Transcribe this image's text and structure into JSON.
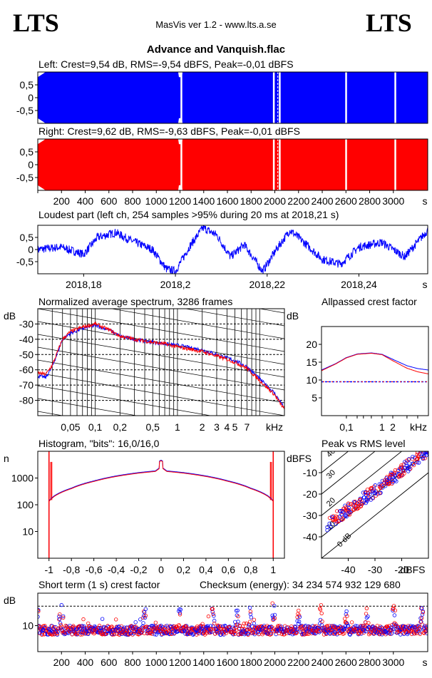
{
  "header": {
    "logo_left": "LTS",
    "logo_right": "LTS",
    "app_title": "MasVis ver 1.2 - www.lts.a.se",
    "file_title": "Advance and Vanquish.flac"
  },
  "colors": {
    "left": "#0000ff",
    "right": "#ff0000",
    "grid": "#000000"
  },
  "waveform": {
    "left_label": "Left: Crest=9,54 dB, RMS=-9,54 dBFS, Peak=-0,01 dBFS",
    "right_label": "Right: Crest=9,62 dB, RMS=-9,63 dBFS, Peak=-0,01 dBFS",
    "yticks": [
      "0,5",
      "0",
      "-0,5"
    ],
    "xticks": [
      "200",
      "400",
      "600",
      "800",
      "1000",
      "1200",
      "1400",
      "1600",
      "1800",
      "2000",
      "2200",
      "2400",
      "2600",
      "2800",
      "3000"
    ],
    "xunit": "s"
  },
  "loudest": {
    "title": "Loudest part (left  ch, 254 samples >95% during 20 ms at 2018,21 s)",
    "yticks": [
      "0,5",
      "0",
      "-0,5"
    ],
    "xticks": [
      "2018,18",
      "2018,2",
      "2018,22",
      "2018,24"
    ],
    "xunit": "s"
  },
  "spectrum": {
    "title": "Normalized average spectrum, 3286 frames",
    "ylabel": "dB",
    "yticks": [
      "-30",
      "-40",
      "-50",
      "-60",
      "-70",
      "-80"
    ],
    "xticks": [
      "0,05",
      "0,1",
      "0,2",
      "0,5",
      "1",
      "2",
      "3",
      "4",
      "5",
      "7"
    ],
    "xunit": "kHz"
  },
  "allpass": {
    "title": "Allpassed crest factor",
    "ylabel": "dB",
    "yticks": [
      "20",
      "15",
      "10",
      "5"
    ],
    "xticks": [
      "0,1",
      "1",
      "2"
    ],
    "xunit": "kHz"
  },
  "histogram": {
    "title": "Histogram, \"bits\": 16,0/16,0",
    "ylabel": "n",
    "yticks": [
      "1000",
      "100",
      "10"
    ],
    "xticks": [
      "-1",
      "-0,8",
      "-0,6",
      "-0,4",
      "-0,2",
      "0",
      "0,2",
      "0,4",
      "0,6",
      "0,8",
      "1"
    ]
  },
  "peakrms": {
    "title": "Peak vs RMS level",
    "ylabel": "dBFS",
    "yticks": [
      "-10",
      "-20",
      "-30",
      "-40"
    ],
    "xticks": [
      "-40",
      "-30",
      "-20"
    ],
    "xunit": "dBFS",
    "diag_labels": [
      "40",
      "30",
      "20",
      "10",
      "0 dB"
    ]
  },
  "shortterm": {
    "title": "Short term (1 s) crest factor",
    "checksum": "Checksum (energy):  34 234 574 932 129 680",
    "ylabel": "dB",
    "yticks": [
      "10"
    ],
    "xticks": [
      "200",
      "400",
      "600",
      "800",
      "1000",
      "1200",
      "1400",
      "1600",
      "1800",
      "2000",
      "2200",
      "2400",
      "2600",
      "2800",
      "3000"
    ],
    "xunit": "s"
  },
  "chart_data": [
    {
      "type": "area",
      "name": "waveform-left",
      "x_range": [
        0,
        3290
      ],
      "ylim": [
        -1,
        1
      ],
      "dropouts_s": [
        1210,
        1990,
        2040,
        2600,
        3015
      ]
    },
    {
      "type": "area",
      "name": "waveform-right",
      "x_range": [
        0,
        3290
      ],
      "ylim": [
        -1,
        1
      ],
      "dropouts_s": [
        1210,
        1990,
        2040,
        2600,
        3015
      ]
    },
    {
      "type": "line",
      "name": "loudest-part",
      "x_range": [
        2018.17,
        2018.255
      ],
      "ylim": [
        -1,
        1
      ],
      "points": [
        [
          2018.17,
          0.0
        ],
        [
          2018.175,
          0.1
        ],
        [
          2018.18,
          -0.2
        ],
        [
          2018.183,
          0.5
        ],
        [
          2018.187,
          0.7
        ],
        [
          2018.19,
          0.4
        ],
        [
          2018.195,
          0.0
        ],
        [
          2018.198,
          -0.8
        ],
        [
          2018.2,
          -0.9
        ],
        [
          2018.203,
          0.1
        ],
        [
          2018.206,
          0.9
        ],
        [
          2018.209,
          0.6
        ],
        [
          2018.212,
          -0.3
        ],
        [
          2018.215,
          0.2
        ],
        [
          2018.219,
          -0.9
        ],
        [
          2018.222,
          0.0
        ],
        [
          2018.225,
          0.8
        ],
        [
          2018.228,
          0.3
        ],
        [
          2018.232,
          -0.4
        ],
        [
          2018.236,
          -0.6
        ],
        [
          2018.24,
          0.1
        ],
        [
          2018.245,
          0.3
        ],
        [
          2018.25,
          -0.3
        ],
        [
          2018.255,
          0.8
        ]
      ]
    },
    {
      "type": "line",
      "name": "spectrum",
      "x_log": true,
      "x_range": [
        0.02,
        20
      ],
      "ylim": [
        -90,
        -20
      ],
      "series": [
        {
          "name": "left",
          "points": [
            [
              0.02,
              -64
            ],
            [
              0.025,
              -65
            ],
            [
              0.03,
              -58
            ],
            [
              0.04,
              -40
            ],
            [
              0.05,
              -36
            ],
            [
              0.07,
              -33
            ],
            [
              0.1,
              -31
            ],
            [
              0.15,
              -34
            ],
            [
              0.2,
              -38
            ],
            [
              0.3,
              -40
            ],
            [
              0.5,
              -42
            ],
            [
              0.7,
              -43
            ],
            [
              1,
              -44
            ],
            [
              2,
              -47
            ],
            [
              3,
              -50
            ],
            [
              5,
              -54
            ],
            [
              7,
              -58
            ],
            [
              10,
              -66
            ],
            [
              15,
              -75
            ],
            [
              20,
              -85
            ]
          ]
        },
        {
          "name": "right",
          "points": [
            [
              0.02,
              -62
            ],
            [
              0.025,
              -63
            ],
            [
              0.03,
              -57
            ],
            [
              0.04,
              -40
            ],
            [
              0.05,
              -35
            ],
            [
              0.07,
              -32
            ],
            [
              0.1,
              -30
            ],
            [
              0.15,
              -34
            ],
            [
              0.2,
              -38
            ],
            [
              0.3,
              -40
            ],
            [
              0.5,
              -42
            ],
            [
              0.7,
              -43
            ],
            [
              1,
              -45
            ],
            [
              2,
              -48
            ],
            [
              3,
              -51
            ],
            [
              5,
              -55
            ],
            [
              7,
              -59
            ],
            [
              10,
              -67
            ],
            [
              15,
              -76
            ],
            [
              20,
              -86
            ]
          ]
        }
      ]
    },
    {
      "type": "line",
      "name": "allpassed-crest",
      "x_log": true,
      "x_range": [
        0.02,
        20
      ],
      "ylim": [
        0,
        25
      ],
      "reference_db": 9.5,
      "series": [
        {
          "name": "left",
          "points": [
            [
              0.02,
              12.8
            ],
            [
              0.05,
              14.6
            ],
            [
              0.1,
              16.3
            ],
            [
              0.2,
              17.3
            ],
            [
              0.5,
              17.6
            ],
            [
              1,
              17.2
            ],
            [
              2,
              15.8
            ],
            [
              5,
              14.0
            ],
            [
              10,
              13.2
            ],
            [
              20,
              12.8
            ]
          ]
        },
        {
          "name": "right",
          "points": [
            [
              0.02,
              12.6
            ],
            [
              0.05,
              14.5
            ],
            [
              0.1,
              16.2
            ],
            [
              0.2,
              17.2
            ],
            [
              0.5,
              17.5
            ],
            [
              1,
              17.1
            ],
            [
              2,
              15.4
            ],
            [
              5,
              13.3
            ],
            [
              10,
              12.3
            ],
            [
              20,
              11.7
            ]
          ]
        }
      ]
    },
    {
      "type": "line",
      "name": "histogram",
      "x_range": [
        -1.1,
        1.1
      ],
      "y_log": true,
      "ylim": [
        1,
        10000
      ],
      "points": [
        [
          -1,
          140
        ],
        [
          -0.95,
          220
        ],
        [
          -0.8,
          420
        ],
        [
          -0.6,
          780
        ],
        [
          -0.4,
          1200
        ],
        [
          -0.2,
          1600
        ],
        [
          -0.05,
          1850
        ],
        [
          0,
          2600
        ],
        [
          0.05,
          1850
        ],
        [
          0.2,
          1600
        ],
        [
          0.4,
          1200
        ],
        [
          0.6,
          780
        ],
        [
          0.8,
          420
        ],
        [
          0.95,
          220
        ],
        [
          1,
          140
        ]
      ]
    },
    {
      "type": "scatter",
      "name": "peak-vs-rms",
      "x_range": [
        -50,
        -10
      ],
      "ylim": [
        -50,
        0
      ],
      "diagonals_db": [
        0,
        10,
        20,
        30,
        40
      ]
    },
    {
      "type": "scatter",
      "name": "short-term-crest",
      "x_range": [
        0,
        3290
      ],
      "ylim": [
        6,
        15
      ],
      "dashed_level_db": 13
    }
  ]
}
